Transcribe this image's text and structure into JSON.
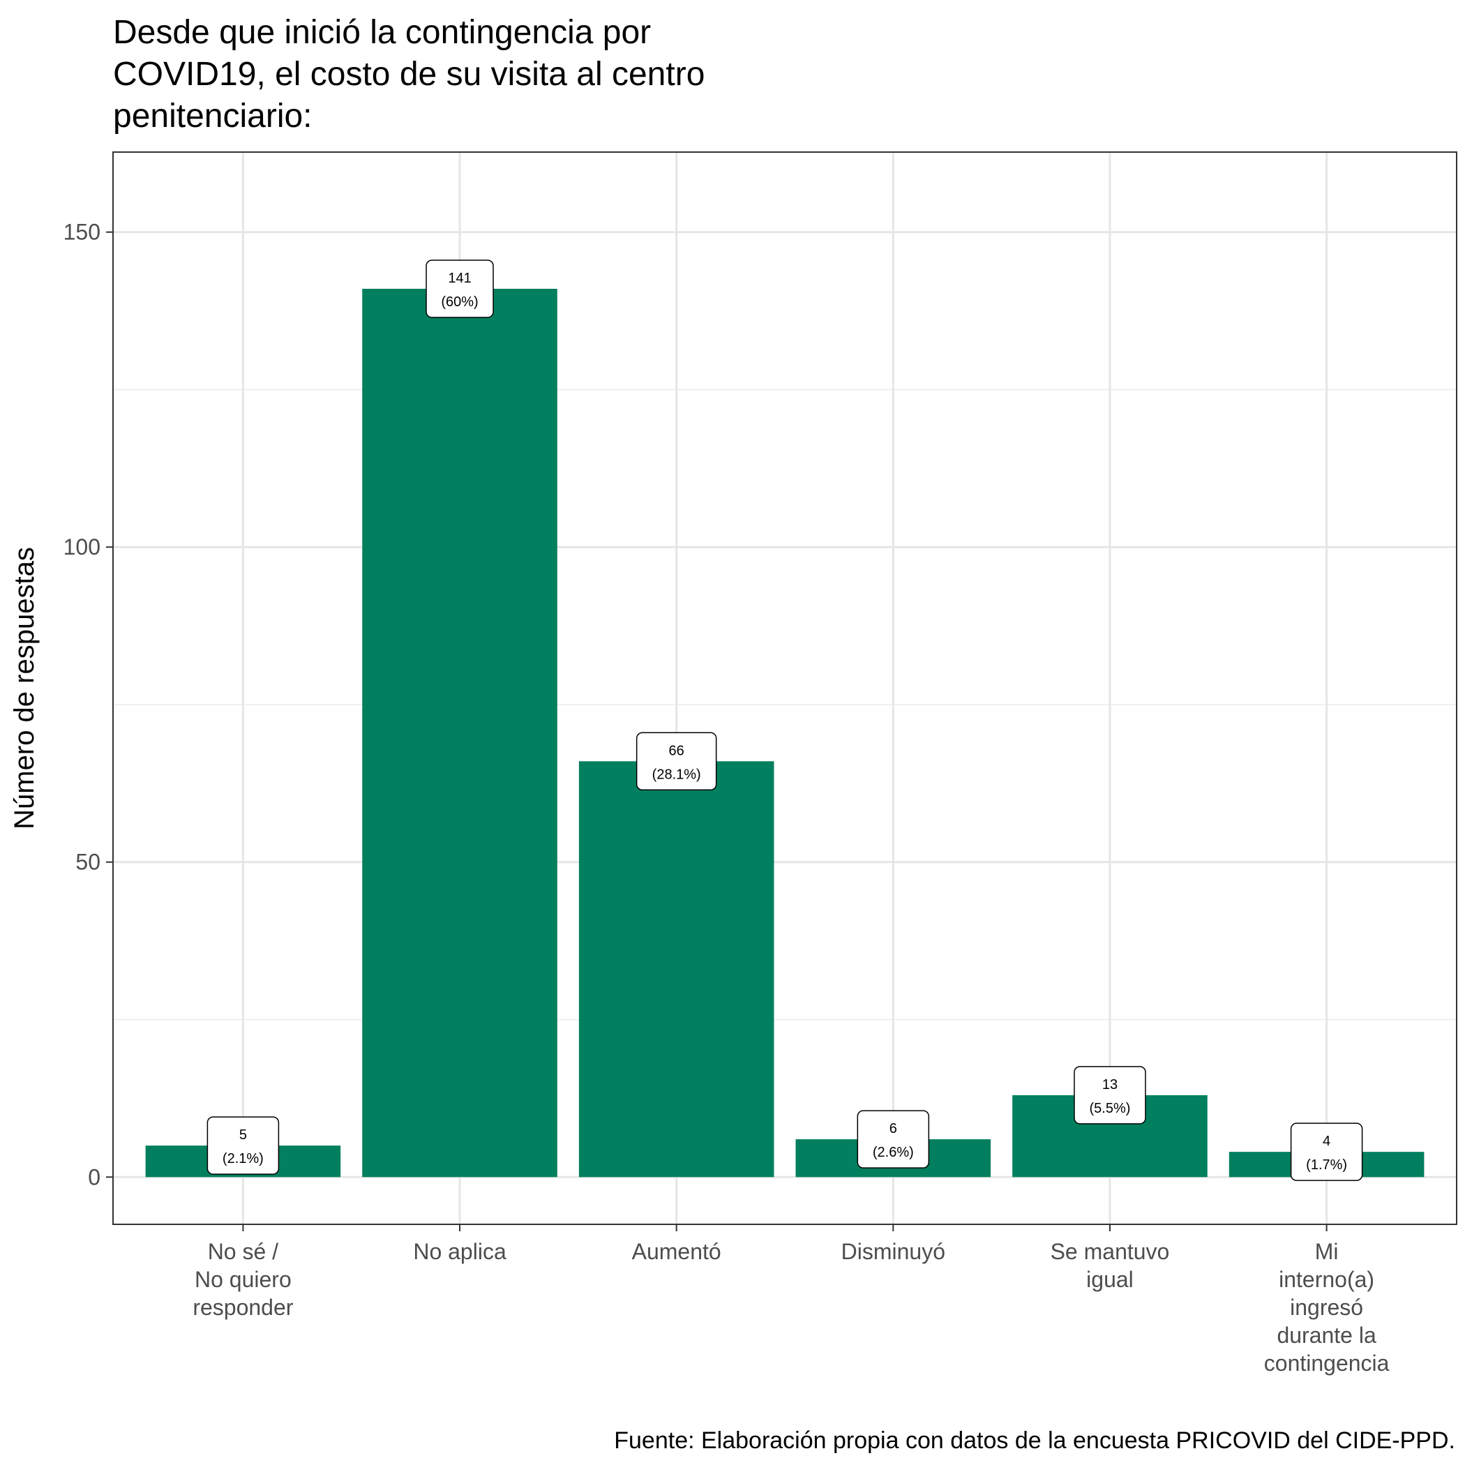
{
  "chart_data": {
    "type": "bar",
    "title_lines": [
      "Desde que inició la contingencia por",
      "COVID19, el costo de su visita al centro",
      "penitenciario:"
    ],
    "ylabel": "Número de respuestas",
    "xlabel": "",
    "categories": [
      [
        "No sé /",
        "No quiero",
        "responder"
      ],
      [
        "No aplica"
      ],
      [
        "Aumentó"
      ],
      [
        "Disminuyó"
      ],
      [
        "Se mantuvo",
        "igual"
      ],
      [
        "Mi",
        "interno(a)",
        "ingresó",
        "durante la",
        "contingencia"
      ]
    ],
    "values": [
      5,
      141,
      66,
      6,
      13,
      4
    ],
    "labels": [
      [
        "5",
        "(2.1%)"
      ],
      [
        "141",
        "(60%)"
      ],
      [
        "66",
        "(28.1%)"
      ],
      [
        "6",
        "(2.6%)"
      ],
      [
        "13",
        "(5.5%)"
      ],
      [
        "4",
        "(1.7%)"
      ]
    ],
    "yticks": [
      0,
      50,
      100,
      150
    ],
    "ylim": [
      -7.5,
      162.7
    ],
    "grid": true,
    "bar_color": "#027f5e",
    "caption": "Fuente: Elaboración propia con datos de la encuesta PRICOVID del CIDE-PPD."
  }
}
